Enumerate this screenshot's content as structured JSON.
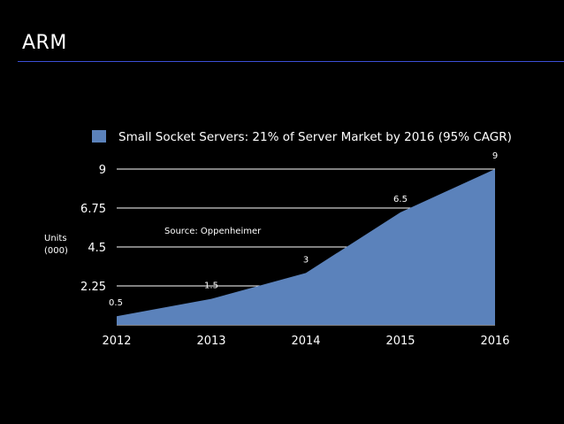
{
  "slide": {
    "title": "ARM"
  },
  "colors": {
    "background": "#000000",
    "title_rule": "#3b4fd6",
    "area_fill": "#5b82bb",
    "text": "#ffffff",
    "gridline": "#ffffff"
  },
  "chart_data": {
    "type": "area",
    "title": "",
    "legend": {
      "position": "top",
      "entries": [
        "Small Socket Servers: 21% of Server Market by 2016 (95% CAGR)"
      ]
    },
    "x": [
      "2012",
      "2013",
      "2014",
      "2015",
      "2016"
    ],
    "series": [
      {
        "name": "Small Socket Servers: 21% of Server Market by 2016 (95% CAGR)",
        "values": [
          0.5,
          1.5,
          3,
          6.5,
          9
        ],
        "data_labels": [
          "0.5",
          "1.5",
          "3",
          "6.5",
          "9"
        ]
      }
    ],
    "ylabel_lines": [
      "Units",
      "(000)"
    ],
    "yticks": [
      2.25,
      4.5,
      6.75,
      9
    ],
    "ytick_labels": [
      "2.25",
      "4.5",
      "6.75",
      "9"
    ],
    "ylim": [
      0,
      9
    ],
    "grid": true,
    "annotation": "Source: Oppenheimer"
  }
}
